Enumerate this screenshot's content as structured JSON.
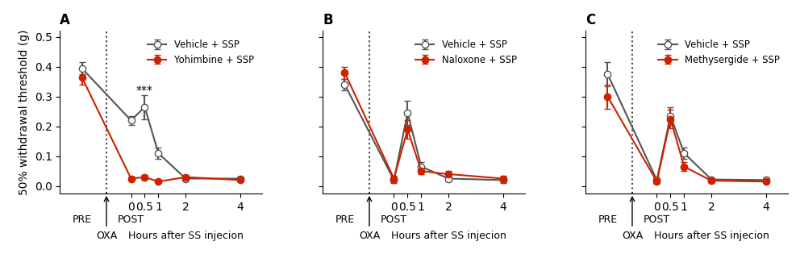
{
  "chart_data": [
    {
      "type": "line",
      "title": "A",
      "ylabel": "50% withdrawal threshold (g)",
      "xlabel": "Hours after SS injecion",
      "xlabel_x": 2.0,
      "x": [
        -1.8,
        0,
        0.5,
        1,
        2,
        4
      ],
      "series": [
        {
          "name": "Vehicle + SSP",
          "color": "#555555",
          "marker": "open_circle",
          "values": [
            0.395,
            0.22,
            0.265,
            0.11,
            0.025,
            0.025
          ],
          "errors": [
            0.02,
            0.015,
            0.04,
            0.02,
            0.008,
            0.008
          ]
        },
        {
          "name": "Yohimbine + SSP",
          "color": "#cc2200",
          "marker": "circle",
          "values": [
            0.365,
            0.025,
            0.03,
            0.015,
            0.03,
            0.02
          ],
          "errors": [
            0.025,
            0.008,
            0.008,
            0.005,
            0.008,
            0.005
          ]
        }
      ],
      "annotations": [
        {
          "text": "***",
          "x": 0.5,
          "y": 0.303
        }
      ],
      "vline": {
        "x": -0.9,
        "label": "OXA"
      },
      "x_notes": [
        {
          "text": "PRE",
          "x": -1.8
        },
        {
          "text": "POST",
          "x": 0
        }
      ],
      "xlim": [
        -2.6,
        4.8
      ],
      "xticks": [
        0,
        0.5,
        1,
        2,
        4
      ],
      "ylim": [
        -0.025,
        0.52
      ],
      "yticks": [
        0.0,
        0.1,
        0.2,
        0.3,
        0.4,
        0.5
      ],
      "legend": "upper right",
      "grid": false
    },
    {
      "type": "line",
      "title": "B",
      "xlabel": "Hours after SS injecion",
      "xlabel_x": 2.0,
      "x": [
        -1.8,
        0,
        0.5,
        1,
        2,
        4
      ],
      "series": [
        {
          "name": "Vehicle + SSP",
          "color": "#555555",
          "marker": "open_circle",
          "values": [
            0.34,
            0.02,
            0.245,
            0.065,
            0.025,
            0.02
          ],
          "errors": [
            0.02,
            0.01,
            0.04,
            0.015,
            0.01,
            0.01
          ]
        },
        {
          "name": "Naloxone + SSP",
          "color": "#cc2200",
          "marker": "circle",
          "values": [
            0.38,
            0.025,
            0.19,
            0.05,
            0.04,
            0.025
          ],
          "errors": [
            0.02,
            0.01,
            0.03,
            0.01,
            0.01,
            0.01
          ]
        }
      ],
      "vline": {
        "x": -0.9,
        "label": "OXA"
      },
      "x_notes": [
        {
          "text": "PRE",
          "x": -1.8
        },
        {
          "text": "POST",
          "x": 0
        }
      ],
      "xlim": [
        -2.6,
        4.8
      ],
      "xticks": [
        0,
        0.5,
        1,
        2,
        4
      ],
      "ylim": [
        -0.025,
        0.52
      ],
      "yticks": [
        0.0,
        0.1,
        0.2,
        0.3,
        0.4,
        0.5
      ],
      "tick_labels": "x",
      "legend": "upper right",
      "grid": false
    },
    {
      "type": "line",
      "title": "C",
      "xlabel": "Hours after SS injecion",
      "xlabel_x": 2.0,
      "x": [
        -1.8,
        0,
        0.5,
        1,
        2,
        4
      ],
      "series": [
        {
          "name": "Vehicle + SSP",
          "color": "#555555",
          "marker": "open_circle",
          "values": [
            0.375,
            0.02,
            0.235,
            0.11,
            0.022,
            0.02
          ],
          "errors": [
            0.04,
            0.01,
            0.03,
            0.02,
            0.008,
            0.008
          ]
        },
        {
          "name": "Methysergide + SSP",
          "color": "#cc2200",
          "marker": "circle",
          "values": [
            0.3,
            0.015,
            0.225,
            0.065,
            0.018,
            0.015
          ],
          "errors": [
            0.04,
            0.005,
            0.03,
            0.015,
            0.005,
            0.005
          ]
        }
      ],
      "vline": {
        "x": -0.9,
        "label": "OXA"
      },
      "x_notes": [
        {
          "text": "PRE",
          "x": -1.8
        },
        {
          "text": "POST",
          "x": 0
        }
      ],
      "xlim": [
        -2.6,
        4.8
      ],
      "xticks": [
        0,
        0.5,
        1,
        2,
        4
      ],
      "ylim": [
        -0.025,
        0.52
      ],
      "yticks": [
        0.0,
        0.1,
        0.2,
        0.3,
        0.4,
        0.5
      ],
      "tick_labels": "x",
      "legend": "upper right",
      "grid": false
    }
  ]
}
